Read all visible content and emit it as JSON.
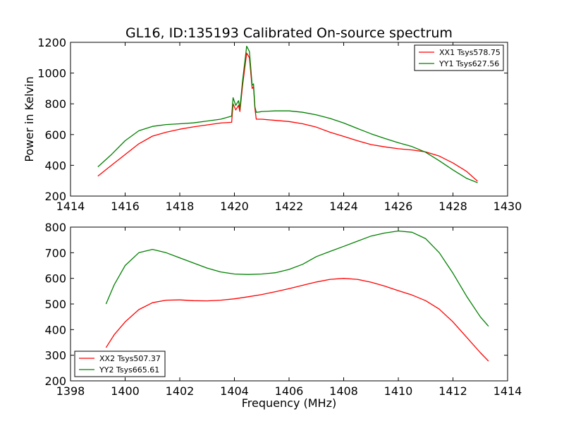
{
  "chart_data": [
    {
      "type": "line",
      "title": "GL16, ID:135193 Calibrated On-source spectrum",
      "xlabel": "",
      "ylabel": "Power in Kelvin",
      "xlim": [
        1414,
        1430
      ],
      "ylim": [
        200,
        1200
      ],
      "xticks": [
        1414,
        1416,
        1418,
        1420,
        1422,
        1424,
        1426,
        1428,
        1430
      ],
      "yticks": [
        200,
        400,
        600,
        800,
        1000,
        1200
      ],
      "grid": false,
      "legend_position": "top-right",
      "series": [
        {
          "name": "XX1 Tsys578.75",
          "color": "#ff0000",
          "x": [
            1415.0,
            1415.5,
            1416.0,
            1416.5,
            1417.0,
            1417.5,
            1418.0,
            1418.5,
            1419.0,
            1419.5,
            1419.9,
            1419.95,
            1420.05,
            1420.15,
            1420.2,
            1420.3,
            1420.45,
            1420.55,
            1420.65,
            1420.7,
            1420.75,
            1420.8,
            1420.9,
            1421.0,
            1421.5,
            1422.0,
            1422.5,
            1423.0,
            1423.5,
            1424.0,
            1424.5,
            1425.0,
            1425.5,
            1426.0,
            1426.5,
            1427.0,
            1427.5,
            1428.0,
            1428.5,
            1428.9
          ],
          "values": [
            330,
            400,
            470,
            540,
            590,
            615,
            635,
            650,
            663,
            675,
            680,
            800,
            760,
            790,
            750,
            920,
            1130,
            1100,
            900,
            910,
            770,
            700,
            700,
            700,
            692,
            685,
            670,
            648,
            615,
            588,
            560,
            535,
            520,
            508,
            500,
            487,
            460,
            415,
            360,
            297
          ]
        },
        {
          "name": "YY1 Tsys627.56",
          "color": "#008000",
          "x": [
            1415.0,
            1415.5,
            1416.0,
            1416.5,
            1417.0,
            1417.5,
            1418.0,
            1418.5,
            1419.0,
            1419.5,
            1419.9,
            1419.95,
            1420.05,
            1420.15,
            1420.2,
            1420.3,
            1420.45,
            1420.55,
            1420.65,
            1420.7,
            1420.75,
            1420.8,
            1420.9,
            1421.0,
            1421.5,
            1422.0,
            1422.5,
            1423.0,
            1423.5,
            1424.0,
            1424.5,
            1425.0,
            1425.5,
            1426.0,
            1426.5,
            1427.0,
            1427.5,
            1428.0,
            1428.5,
            1428.9
          ],
          "values": [
            390,
            470,
            560,
            625,
            653,
            665,
            670,
            676,
            688,
            700,
            720,
            840,
            790,
            820,
            770,
            950,
            1175,
            1140,
            920,
            930,
            780,
            745,
            747,
            750,
            754,
            754,
            745,
            728,
            705,
            675,
            640,
            605,
            575,
            547,
            522,
            485,
            430,
            370,
            315,
            287
          ]
        }
      ]
    },
    {
      "type": "line",
      "title": "",
      "xlabel": "Frequency (MHz)",
      "ylabel": "",
      "xlim": [
        1398,
        1414
      ],
      "ylim": [
        200,
        800
      ],
      "xticks": [
        1398,
        1400,
        1402,
        1404,
        1406,
        1408,
        1410,
        1412,
        1414
      ],
      "yticks": [
        200,
        300,
        400,
        500,
        600,
        700,
        800
      ],
      "grid": false,
      "legend_position": "bottom-left",
      "series": [
        {
          "name": "XX2 Tsys507.37",
          "color": "#ff0000",
          "x": [
            1399.3,
            1399.6,
            1400.0,
            1400.5,
            1401.0,
            1401.5,
            1402.0,
            1402.5,
            1403.0,
            1403.5,
            1404.0,
            1404.5,
            1405.0,
            1405.5,
            1406.0,
            1406.5,
            1407.0,
            1407.5,
            1408.0,
            1408.5,
            1409.0,
            1409.5,
            1410.0,
            1410.5,
            1411.0,
            1411.5,
            1412.0,
            1412.5,
            1413.0,
            1413.3
          ],
          "values": [
            330,
            380,
            430,
            478,
            505,
            515,
            516,
            513,
            512,
            515,
            520,
            528,
            537,
            548,
            560,
            573,
            586,
            596,
            600,
            596,
            585,
            570,
            552,
            535,
            513,
            480,
            430,
            370,
            310,
            277
          ]
        },
        {
          "name": "YY2 Tsys665.61",
          "color": "#008000",
          "x": [
            1399.3,
            1399.6,
            1400.0,
            1400.5,
            1401.0,
            1401.5,
            1402.0,
            1402.5,
            1403.0,
            1403.5,
            1404.0,
            1404.5,
            1405.0,
            1405.5,
            1406.0,
            1406.5,
            1407.0,
            1407.5,
            1408.0,
            1408.5,
            1409.0,
            1409.5,
            1410.0,
            1410.5,
            1411.0,
            1411.5,
            1412.0,
            1412.5,
            1413.0,
            1413.3
          ],
          "values": [
            500,
            575,
            650,
            700,
            713,
            700,
            680,
            660,
            640,
            625,
            617,
            615,
            617,
            622,
            635,
            655,
            685,
            705,
            725,
            745,
            765,
            777,
            785,
            780,
            755,
            700,
            620,
            530,
            450,
            413
          ]
        }
      ]
    }
  ]
}
